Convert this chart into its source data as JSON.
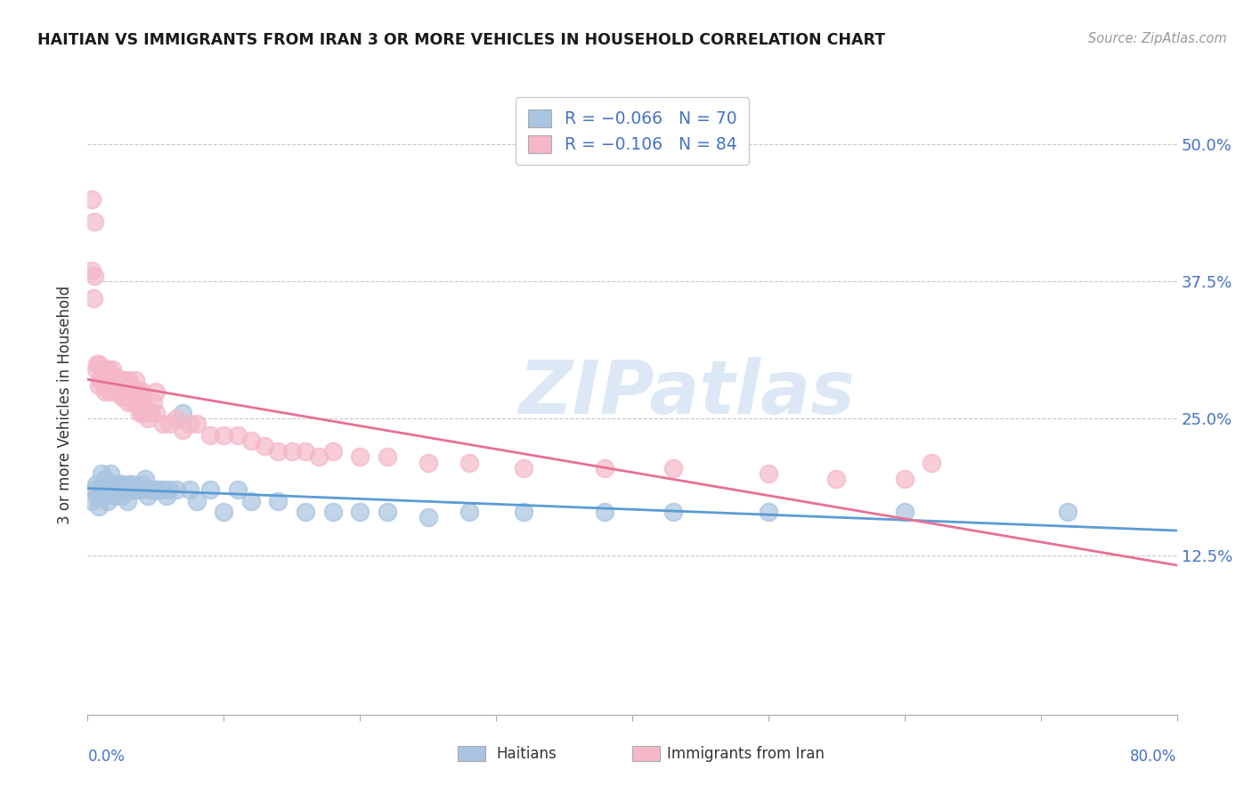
{
  "title": "HAITIAN VS IMMIGRANTS FROM IRAN 3 OR MORE VEHICLES IN HOUSEHOLD CORRELATION CHART",
  "source": "Source: ZipAtlas.com",
  "ylabel": "3 or more Vehicles in Household",
  "ytick_labels": [
    "12.5%",
    "25.0%",
    "37.5%",
    "50.0%"
  ],
  "ytick_values": [
    0.125,
    0.25,
    0.375,
    0.5
  ],
  "xlim": [
    0.0,
    0.8
  ],
  "ylim": [
    -0.02,
    0.545
  ],
  "haitians_color": "#a8c4e0",
  "iran_color": "#f4b8c8",
  "haitians_line_color": "#5b9bd5",
  "iran_line_color": "#e87090",
  "watermark_color": "#dce8f5",
  "background_color": "#ffffff",
  "haitians_x": [
    0.003,
    0.005,
    0.006,
    0.007,
    0.008,
    0.009,
    0.01,
    0.01,
    0.011,
    0.012,
    0.013,
    0.014,
    0.015,
    0.015,
    0.016,
    0.017,
    0.018,
    0.019,
    0.02,
    0.02,
    0.021,
    0.022,
    0.023,
    0.024,
    0.025,
    0.025,
    0.026,
    0.027,
    0.028,
    0.029,
    0.03,
    0.031,
    0.032,
    0.033,
    0.034,
    0.035,
    0.036,
    0.037,
    0.038,
    0.04,
    0.042,
    0.044,
    0.046,
    0.048,
    0.05,
    0.052,
    0.055,
    0.058,
    0.06,
    0.065,
    0.07,
    0.075,
    0.08,
    0.09,
    0.1,
    0.11,
    0.12,
    0.14,
    0.16,
    0.18,
    0.2,
    0.22,
    0.25,
    0.28,
    0.32,
    0.38,
    0.43,
    0.5,
    0.6,
    0.72
  ],
  "haitians_y": [
    0.175,
    0.185,
    0.19,
    0.18,
    0.17,
    0.185,
    0.2,
    0.185,
    0.185,
    0.18,
    0.195,
    0.185,
    0.19,
    0.175,
    0.185,
    0.2,
    0.185,
    0.19,
    0.185,
    0.18,
    0.185,
    0.19,
    0.185,
    0.19,
    0.18,
    0.19,
    0.185,
    0.185,
    0.185,
    0.175,
    0.19,
    0.185,
    0.185,
    0.19,
    0.185,
    0.185,
    0.185,
    0.185,
    0.185,
    0.19,
    0.195,
    0.18,
    0.185,
    0.185,
    0.185,
    0.185,
    0.185,
    0.18,
    0.185,
    0.185,
    0.255,
    0.185,
    0.175,
    0.185,
    0.165,
    0.185,
    0.175,
    0.175,
    0.165,
    0.165,
    0.165,
    0.165,
    0.16,
    0.165,
    0.165,
    0.165,
    0.165,
    0.165,
    0.165,
    0.165
  ],
  "iran_x": [
    0.003,
    0.004,
    0.005,
    0.006,
    0.007,
    0.008,
    0.009,
    0.01,
    0.011,
    0.012,
    0.013,
    0.014,
    0.015,
    0.015,
    0.016,
    0.017,
    0.018,
    0.019,
    0.02,
    0.021,
    0.022,
    0.023,
    0.024,
    0.025,
    0.026,
    0.027,
    0.028,
    0.029,
    0.03,
    0.031,
    0.032,
    0.033,
    0.034,
    0.035,
    0.036,
    0.037,
    0.038,
    0.039,
    0.04,
    0.042,
    0.044,
    0.046,
    0.048,
    0.05,
    0.055,
    0.06,
    0.065,
    0.07,
    0.075,
    0.08,
    0.09,
    0.1,
    0.11,
    0.12,
    0.13,
    0.14,
    0.15,
    0.16,
    0.17,
    0.18,
    0.2,
    0.22,
    0.25,
    0.28,
    0.32,
    0.38,
    0.43,
    0.5,
    0.55,
    0.6,
    0.003,
    0.005,
    0.008,
    0.01,
    0.012,
    0.015,
    0.018,
    0.022,
    0.026,
    0.03,
    0.035,
    0.04,
    0.05,
    0.62
  ],
  "iran_y": [
    0.385,
    0.36,
    0.38,
    0.295,
    0.3,
    0.28,
    0.285,
    0.29,
    0.285,
    0.285,
    0.275,
    0.285,
    0.28,
    0.295,
    0.275,
    0.285,
    0.29,
    0.28,
    0.285,
    0.275,
    0.275,
    0.285,
    0.275,
    0.27,
    0.285,
    0.275,
    0.27,
    0.28,
    0.265,
    0.27,
    0.28,
    0.265,
    0.275,
    0.27,
    0.265,
    0.275,
    0.255,
    0.265,
    0.255,
    0.26,
    0.25,
    0.255,
    0.265,
    0.255,
    0.245,
    0.245,
    0.25,
    0.24,
    0.245,
    0.245,
    0.235,
    0.235,
    0.235,
    0.23,
    0.225,
    0.22,
    0.22,
    0.22,
    0.215,
    0.22,
    0.215,
    0.215,
    0.21,
    0.21,
    0.205,
    0.205,
    0.205,
    0.2,
    0.195,
    0.195,
    0.45,
    0.43,
    0.3,
    0.285,
    0.285,
    0.295,
    0.295,
    0.285,
    0.285,
    0.285,
    0.285,
    0.275,
    0.275,
    0.21
  ]
}
